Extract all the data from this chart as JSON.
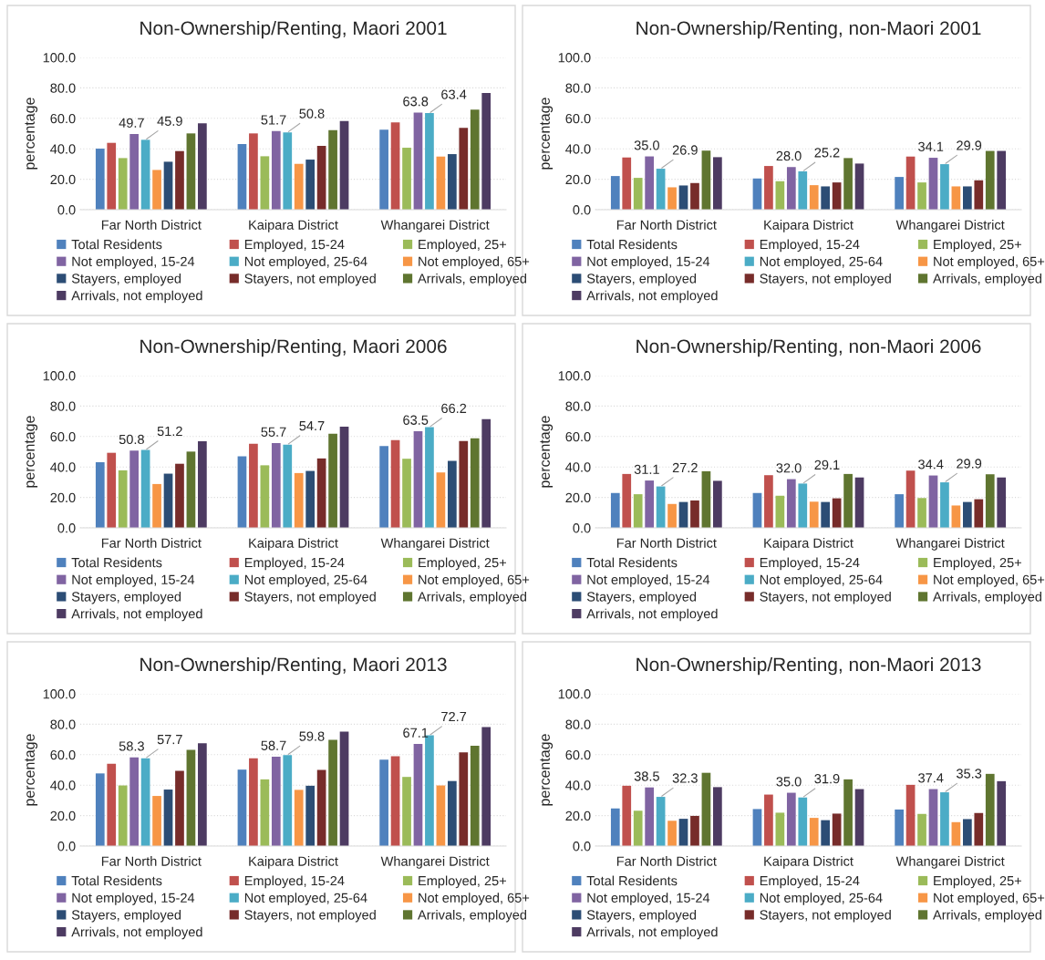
{
  "chart_data": [
    {
      "type": "bar",
      "title": "Non-Ownership/Renting, Maori 2001",
      "ylabel": "percentage",
      "categories": [
        "Far North District",
        "Kaipara District",
        "Whangarei District"
      ],
      "ylim": [
        0,
        100
      ],
      "yticks": [
        {
          "value": 0,
          "label": "0.0"
        },
        {
          "value": 20,
          "label": "20.0"
        },
        {
          "value": 40,
          "label": "40.0"
        },
        {
          "value": 60,
          "label": "60.0"
        },
        {
          "value": 80,
          "label": "80.0"
        },
        {
          "value": 100,
          "label": "100.0"
        }
      ],
      "grid": "y",
      "legend": "bottom",
      "series": [
        {
          "name": "Total Residents",
          "color": "#4f81bd",
          "values": [
            40.1,
            43.1,
            52.5
          ]
        },
        {
          "name": "Employed, 15-24",
          "color": "#c0504d",
          "values": [
            43.9,
            50.1,
            57.3
          ]
        },
        {
          "name": "Employed, 25+",
          "color": "#9bbb59",
          "values": [
            33.9,
            35.1,
            40.7
          ]
        },
        {
          "name": "Not employed, 15-24",
          "color": "#8064a2",
          "values": [
            49.7,
            51.7,
            63.8
          ],
          "value_labels": [
            "49.7",
            "51.7",
            "63.8"
          ]
        },
        {
          "name": "Not employed, 25-64",
          "color": "#4bacc6",
          "values": [
            45.9,
            50.8,
            63.4
          ],
          "value_labels": [
            "45.9",
            "50.8",
            "63.4"
          ]
        },
        {
          "name": "Not employed, 65+",
          "color": "#f79646",
          "values": [
            26.1,
            30.1,
            34.9
          ]
        },
        {
          "name": "Stayers, employed",
          "color": "#2c4d75",
          "values": [
            31.5,
            32.9,
            36.5
          ]
        },
        {
          "name": "Stayers, not employed",
          "color": "#772c2a",
          "values": [
            38.5,
            41.9,
            53.7
          ]
        },
        {
          "name": "Arrivals, employed",
          "color": "#5f7530",
          "values": [
            50.1,
            52.3,
            65.7
          ]
        },
        {
          "name": "Arrivals, not employed",
          "color": "#4d3b62",
          "values": [
            56.7,
            58.3,
            76.6
          ]
        }
      ]
    },
    {
      "type": "bar",
      "title": "Non-Ownership/Renting, non-Maori 2001",
      "ylabel": "percentage",
      "categories": [
        "Far North District",
        "Kaipara District",
        "Whangarei District"
      ],
      "ylim": [
        0,
        100
      ],
      "yticks": [
        {
          "value": 0,
          "label": "0.0"
        },
        {
          "value": 20,
          "label": "20.0"
        },
        {
          "value": 40,
          "label": "40.0"
        },
        {
          "value": 60,
          "label": "60.0"
        },
        {
          "value": 80,
          "label": "80.0"
        },
        {
          "value": 100,
          "label": "100.0"
        }
      ],
      "grid": "y",
      "legend": "bottom",
      "series": [
        {
          "name": "Total Residents",
          "color": "#4f81bd",
          "values": [
            22.1,
            20.5,
            21.5
          ]
        },
        {
          "name": "Employed, 15-24",
          "color": "#c0504d",
          "values": [
            34.3,
            28.7,
            34.9
          ]
        },
        {
          "name": "Employed, 25+",
          "color": "#9bbb59",
          "values": [
            20.9,
            18.7,
            17.9
          ]
        },
        {
          "name": "Not employed, 15-24",
          "color": "#8064a2",
          "values": [
            35.0,
            28.0,
            34.1
          ],
          "value_labels": [
            "35.0",
            "28.0",
            "34.1"
          ]
        },
        {
          "name": "Not employed, 25-64",
          "color": "#4bacc6",
          "values": [
            26.9,
            25.2,
            29.9
          ],
          "value_labels": [
            "26.9",
            "25.2",
            "29.9"
          ]
        },
        {
          "name": "Not employed, 65+",
          "color": "#f79646",
          "values": [
            14.7,
            16.1,
            15.3
          ]
        },
        {
          "name": "Stayers, employed",
          "color": "#2c4d75",
          "values": [
            15.9,
            15.3,
            15.3
          ]
        },
        {
          "name": "Stayers, not employed",
          "color": "#772c2a",
          "values": [
            17.5,
            17.9,
            19.3
          ]
        },
        {
          "name": "Arrivals, employed",
          "color": "#5f7530",
          "values": [
            38.8,
            33.9,
            38.6
          ]
        },
        {
          "name": "Arrivals, not employed",
          "color": "#4d3b62",
          "values": [
            34.5,
            30.3,
            38.6
          ]
        }
      ]
    },
    {
      "type": "bar",
      "title": "Non-Ownership/Renting, Maori 2006",
      "ylabel": "percentage",
      "categories": [
        "Far North District",
        "Kaipara District",
        "Whangarei District"
      ],
      "ylim": [
        0,
        100
      ],
      "yticks": [
        {
          "value": 0,
          "label": "0.0"
        },
        {
          "value": 20,
          "label": "20.0"
        },
        {
          "value": 40,
          "label": "40.0"
        },
        {
          "value": 60,
          "label": "60.0"
        },
        {
          "value": 80,
          "label": "80.0"
        },
        {
          "value": 100,
          "label": "100.0"
        }
      ],
      "grid": "y",
      "legend": "bottom",
      "series": [
        {
          "name": "Total Residents",
          "color": "#4f81bd",
          "values": [
            43.1,
            47.0,
            53.8
          ]
        },
        {
          "name": "Employed, 15-24",
          "color": "#c0504d",
          "values": [
            49.3,
            55.2,
            57.7
          ]
        },
        {
          "name": "Employed, 25+",
          "color": "#9bbb59",
          "values": [
            37.8,
            41.1,
            45.4
          ]
        },
        {
          "name": "Not employed, 15-24",
          "color": "#8064a2",
          "values": [
            50.8,
            55.7,
            63.5
          ],
          "value_labels": [
            "50.8",
            "55.7",
            "63.5"
          ]
        },
        {
          "name": "Not employed, 25-64",
          "color": "#4bacc6",
          "values": [
            51.2,
            54.7,
            66.2
          ],
          "value_labels": [
            "51.2",
            "54.7",
            "66.2"
          ]
        },
        {
          "name": "Not employed, 65+",
          "color": "#f79646",
          "values": [
            28.8,
            36.0,
            36.4
          ]
        },
        {
          "name": "Stayers, employed",
          "color": "#2c4d75",
          "values": [
            35.6,
            37.4,
            44.0
          ]
        },
        {
          "name": "Stayers, not employed",
          "color": "#772c2a",
          "values": [
            42.1,
            45.6,
            57.1
          ]
        },
        {
          "name": "Arrivals, employed",
          "color": "#5f7530",
          "values": [
            50.1,
            61.8,
            58.9
          ]
        },
        {
          "name": "Arrivals, not employed",
          "color": "#4d3b62",
          "values": [
            56.9,
            66.5,
            71.4
          ]
        }
      ]
    },
    {
      "type": "bar",
      "title": "Non-Ownership/Renting, non-Maori 2006",
      "ylabel": "percentage",
      "categories": [
        "Far North District",
        "Kaipara District",
        "Whangarei District"
      ],
      "ylim": [
        0,
        100
      ],
      "yticks": [
        {
          "value": 0,
          "label": "0.0"
        },
        {
          "value": 20,
          "label": "20.0"
        },
        {
          "value": 40,
          "label": "40.0"
        },
        {
          "value": 60,
          "label": "60.0"
        },
        {
          "value": 80,
          "label": "80.0"
        },
        {
          "value": 100,
          "label": "100.0"
        }
      ],
      "grid": "y",
      "legend": "bottom",
      "series": [
        {
          "name": "Total Residents",
          "color": "#4f81bd",
          "values": [
            22.9,
            22.9,
            22.1
          ]
        },
        {
          "name": "Employed, 15-24",
          "color": "#c0504d",
          "values": [
            35.4,
            34.6,
            37.6
          ]
        },
        {
          "name": "Employed, 25+",
          "color": "#9bbb59",
          "values": [
            22.1,
            21.1,
            19.6
          ]
        },
        {
          "name": "Not employed, 15-24",
          "color": "#8064a2",
          "values": [
            31.1,
            32.0,
            34.4
          ],
          "value_labels": [
            "31.1",
            "32.0",
            "34.4"
          ]
        },
        {
          "name": "Not employed, 25-64",
          "color": "#4bacc6",
          "values": [
            27.2,
            29.1,
            29.9
          ],
          "value_labels": [
            "27.2",
            "29.1",
            "29.9"
          ]
        },
        {
          "name": "Not employed, 65+",
          "color": "#f79646",
          "values": [
            15.7,
            17.2,
            14.7
          ]
        },
        {
          "name": "Stayers, employed",
          "color": "#2c4d75",
          "values": [
            17.0,
            17.0,
            17.0
          ]
        },
        {
          "name": "Stayers, not employed",
          "color": "#772c2a",
          "values": [
            18.0,
            19.4,
            18.8
          ]
        },
        {
          "name": "Arrivals, employed",
          "color": "#5f7530",
          "values": [
            37.2,
            35.4,
            35.2
          ]
        },
        {
          "name": "Arrivals, not employed",
          "color": "#4d3b62",
          "values": [
            30.9,
            33.1,
            33.1
          ]
        }
      ]
    },
    {
      "type": "bar",
      "title": "Non-Ownership/Renting, Maori 2013",
      "ylabel": "percentage",
      "categories": [
        "Far North District",
        "Kaipara District",
        "Whangarei District"
      ],
      "ylim": [
        0,
        100
      ],
      "yticks": [
        {
          "value": 0,
          "label": "0.0"
        },
        {
          "value": 20,
          "label": "20.0"
        },
        {
          "value": 40,
          "label": "40.0"
        },
        {
          "value": 60,
          "label": "60.0"
        },
        {
          "value": 80,
          "label": "80.0"
        },
        {
          "value": 100,
          "label": "100.0"
        }
      ],
      "grid": "y",
      "legend": "bottom",
      "series": [
        {
          "name": "Total Residents",
          "color": "#4f81bd",
          "values": [
            47.7,
            50.2,
            56.7
          ]
        },
        {
          "name": "Employed, 15-24",
          "color": "#c0504d",
          "values": [
            54.0,
            57.7,
            59.0
          ]
        },
        {
          "name": "Employed, 25+",
          "color": "#9bbb59",
          "values": [
            39.8,
            43.8,
            45.4
          ]
        },
        {
          "name": "Not employed, 15-24",
          "color": "#8064a2",
          "values": [
            58.3,
            58.7,
            67.1
          ],
          "value_labels": [
            "58.3",
            "58.7",
            "67.1"
          ]
        },
        {
          "name": "Not employed, 25-64",
          "color": "#4bacc6",
          "values": [
            57.7,
            59.8,
            72.7
          ],
          "value_labels": [
            "57.7",
            "59.8",
            "72.7"
          ]
        },
        {
          "name": "Not employed, 65+",
          "color": "#f79646",
          "values": [
            32.9,
            36.9,
            39.8
          ]
        },
        {
          "name": "Stayers, employed",
          "color": "#2c4d75",
          "values": [
            37.1,
            39.6,
            42.7
          ]
        },
        {
          "name": "Stayers, not employed",
          "color": "#772c2a",
          "values": [
            49.4,
            50.0,
            61.5
          ]
        },
        {
          "name": "Arrivals, employed",
          "color": "#5f7530",
          "values": [
            63.1,
            69.8,
            65.8
          ]
        },
        {
          "name": "Arrivals, not employed",
          "color": "#4d3b62",
          "values": [
            67.5,
            75.2,
            78.1
          ]
        }
      ]
    },
    {
      "type": "bar",
      "title": "Non-Ownership/Renting, non-Maori 2013",
      "ylabel": "percentage",
      "categories": [
        "Far North District",
        "Kaipara District",
        "Whangarei District"
      ],
      "ylim": [
        0,
        100
      ],
      "yticks": [
        {
          "value": 0,
          "label": "0.0"
        },
        {
          "value": 20,
          "label": "20.0"
        },
        {
          "value": 40,
          "label": "40.0"
        },
        {
          "value": 60,
          "label": "60.0"
        },
        {
          "value": 80,
          "label": "80.0"
        },
        {
          "value": 100,
          "label": "100.0"
        }
      ],
      "grid": "y",
      "legend": "bottom",
      "series": [
        {
          "name": "Total Residents",
          "color": "#4f81bd",
          "values": [
            24.7,
            24.3,
            24.0
          ]
        },
        {
          "name": "Employed, 15-24",
          "color": "#c0504d",
          "values": [
            39.6,
            33.8,
            40.2
          ]
        },
        {
          "name": "Employed, 25+",
          "color": "#9bbb59",
          "values": [
            23.2,
            21.9,
            21.1
          ]
        },
        {
          "name": "Not employed, 15-24",
          "color": "#8064a2",
          "values": [
            38.5,
            35.0,
            37.4
          ],
          "value_labels": [
            "38.5",
            "35.0",
            "37.4"
          ]
        },
        {
          "name": "Not employed, 25-64",
          "color": "#4bacc6",
          "values": [
            32.3,
            31.9,
            35.3
          ],
          "value_labels": [
            "32.3",
            "31.9",
            "35.3"
          ]
        },
        {
          "name": "Not employed, 65+",
          "color": "#f79646",
          "values": [
            16.6,
            18.5,
            15.7
          ]
        },
        {
          "name": "Stayers, employed",
          "color": "#2c4d75",
          "values": [
            17.9,
            17.0,
            17.7
          ]
        },
        {
          "name": "Stayers, not employed",
          "color": "#772c2a",
          "values": [
            19.8,
            21.3,
            21.7
          ]
        },
        {
          "name": "Arrivals, employed",
          "color": "#5f7530",
          "values": [
            48.1,
            43.8,
            47.4
          ]
        },
        {
          "name": "Arrivals, not employed",
          "color": "#4d3b62",
          "values": [
            38.7,
            37.4,
            42.6
          ]
        }
      ]
    }
  ]
}
